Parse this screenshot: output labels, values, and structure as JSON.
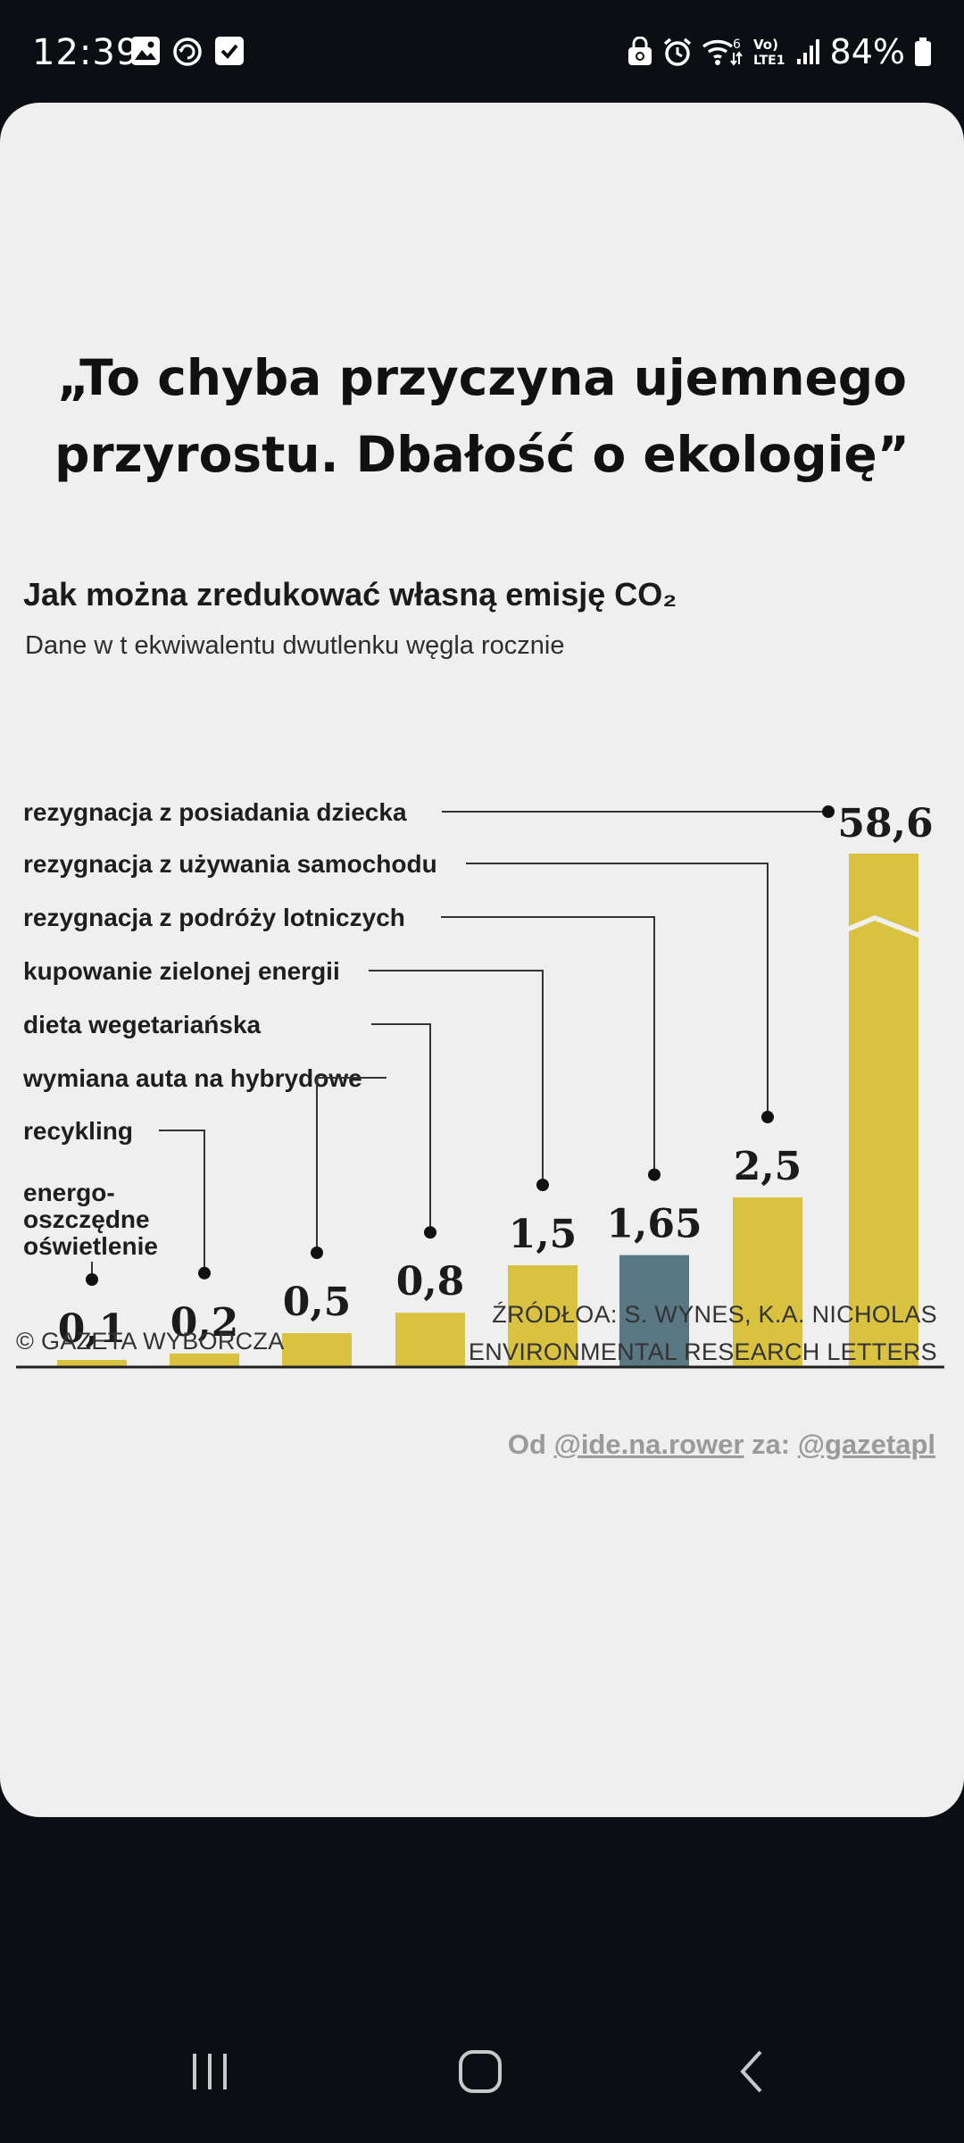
{
  "status_bar": {
    "time": "12:39",
    "battery": "84%",
    "left_icons": [
      "gallery-icon",
      "sync-icon",
      "checkbox-icon"
    ],
    "right_icons": [
      "lock-recycle-icon",
      "alarm-icon",
      "wifi-icon",
      "volte-icon",
      "signal-icon",
      "battery-icon"
    ],
    "volte_text": "Vo) LTE1",
    "wifi_badge": "6"
  },
  "post": {
    "headline": "„To chyba przyczyna ujemnego przyrostu. Dbałość o ekologię”",
    "copyright": "© GAZETA WYBORCZA",
    "source_line1": "ŹRÓDŁOA: S. WYNES, K.A. NICHOLAS",
    "source_line2": "ENVIRONMENTAL RESEARCH LETTERS",
    "credit_prefix": "Od ",
    "credit_user1": "@ide.na.rower",
    "credit_mid": " za: ",
    "credit_user2": "@gazetapl"
  },
  "chart_data": {
    "type": "bar",
    "title": "Jak można zredukować własną emisję CO₂",
    "subtitle": "Dane w t ekwiwalentu dwutlenku węgla rocznie",
    "categories": [
      "energo-oszczędne oświetlenie",
      "recykling",
      "wymiana auta na hybrydowe",
      "dieta wegetariańska",
      "kupowanie zielonej energii",
      "rezygnacja z podróży lotniczych",
      "rezygnacja z używania samochodu",
      "rezygnacja z posiadania dziecka"
    ],
    "label_lines": [
      [
        "energo-",
        "oszczędne",
        "oświetlenie"
      ],
      [
        "recykling"
      ],
      [
        "wymiana auta na hybrydowe"
      ],
      [
        "dieta wegetariańska"
      ],
      [
        "kupowanie zielonej energii"
      ],
      [
        "rezygnacja z podróży lotniczych"
      ],
      [
        "rezygnacja z używania samochodu"
      ],
      [
        "rezygnacja z posiadania dziecka"
      ]
    ],
    "values": [
      0.1,
      0.2,
      0.5,
      0.8,
      1.5,
      1.65,
      2.5,
      58.6
    ],
    "value_labels": [
      "0,1",
      "0,2",
      "0,5",
      "0,8",
      "1,5",
      "1,65",
      "2,5",
      "58,6"
    ],
    "highlight_index": 5,
    "axis_break_on_last": true,
    "colors": {
      "bar": "#d8c23f",
      "highlight": "#5a7784",
      "line": "#333333",
      "axis": "#222222"
    }
  }
}
